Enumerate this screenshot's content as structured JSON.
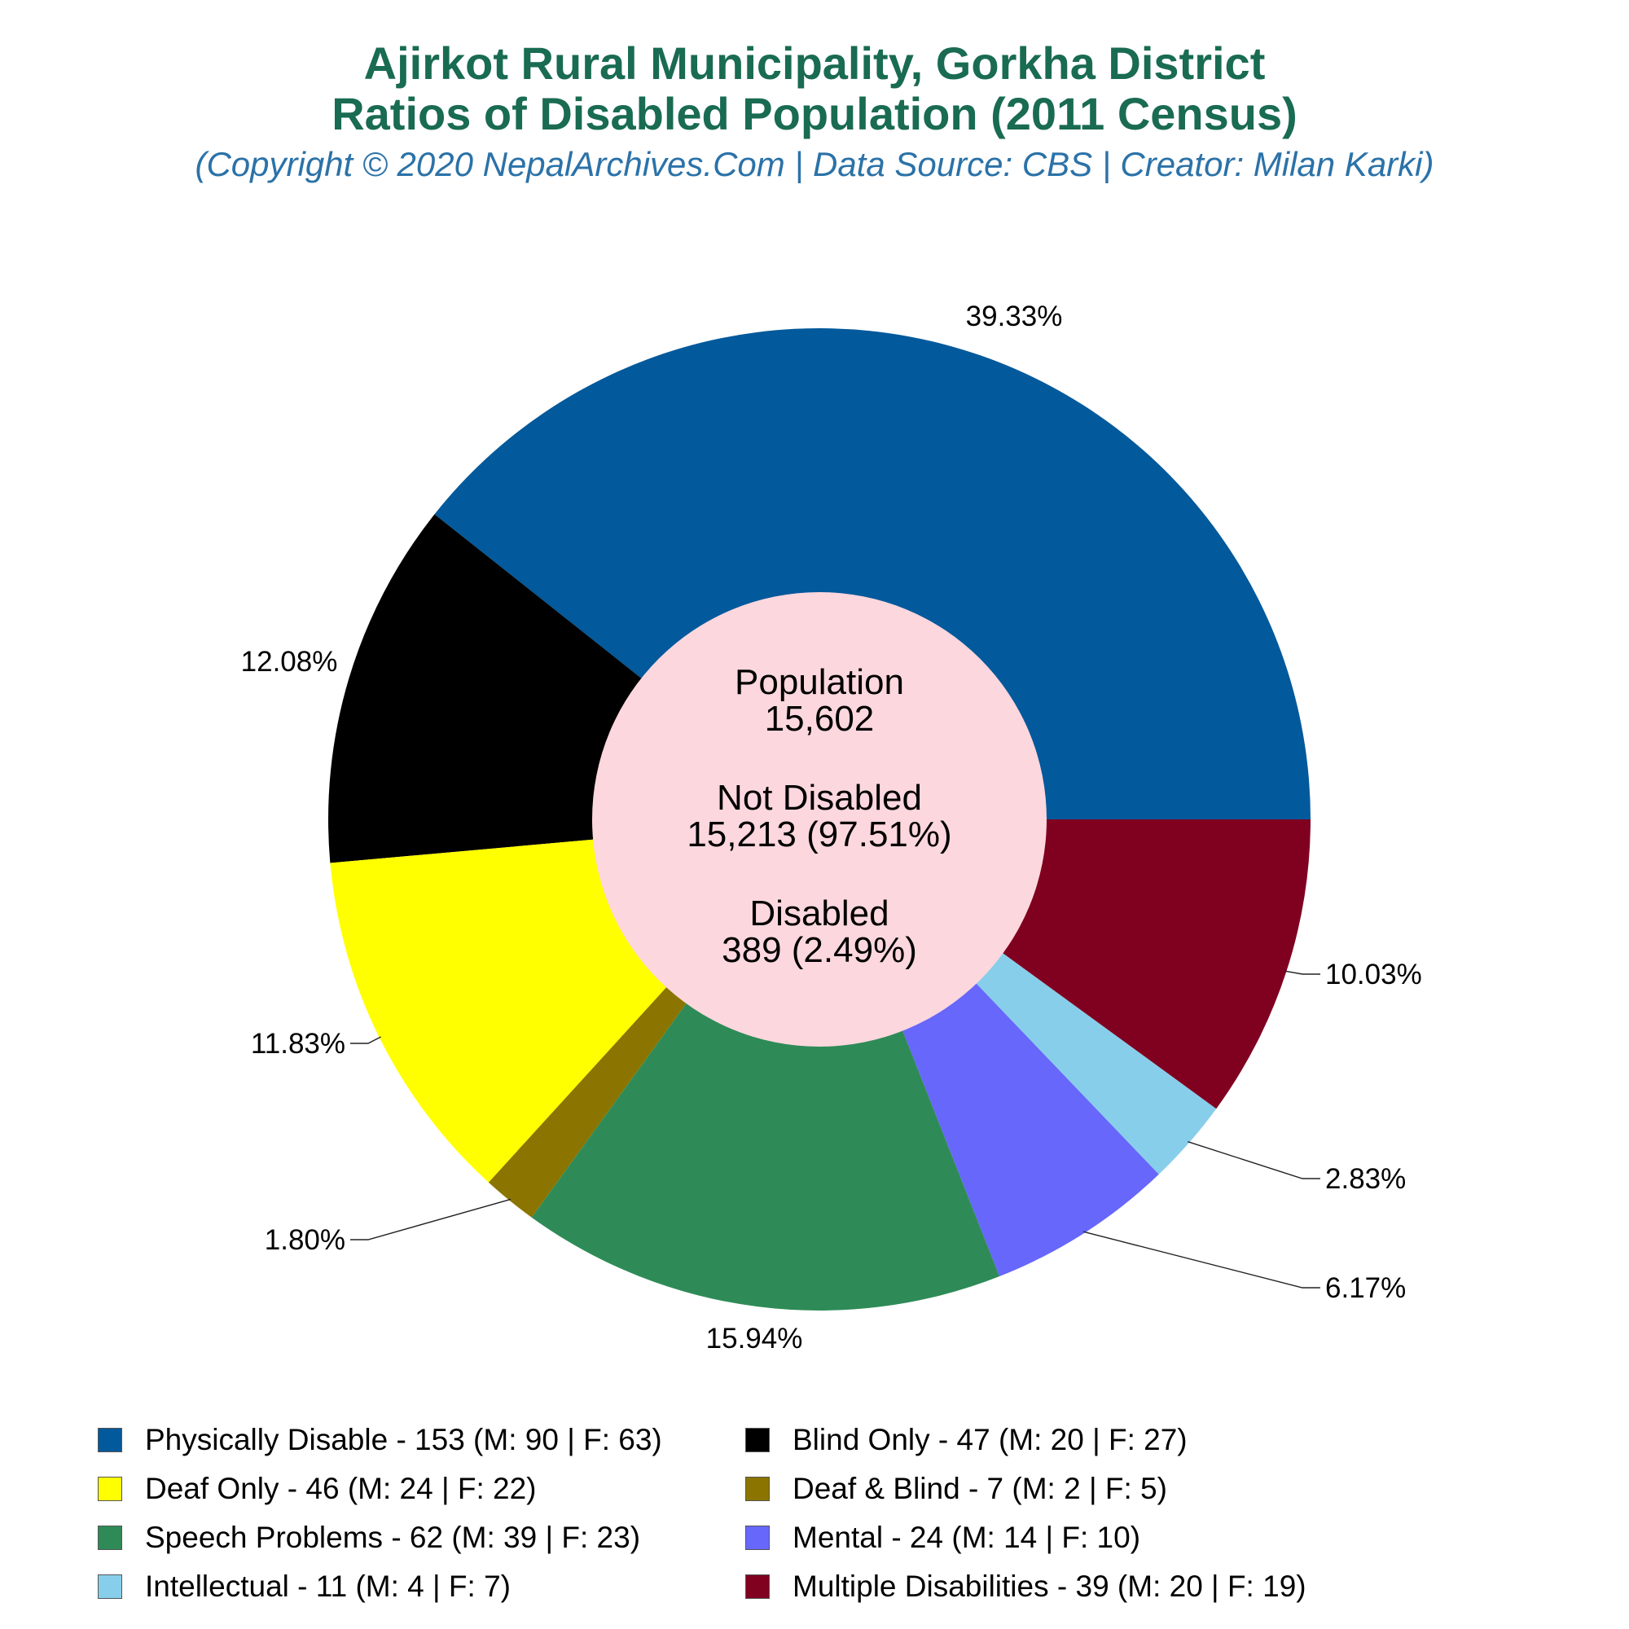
{
  "title": {
    "line1": "Ajirkot Rural Municipality, Gorkha District",
    "line2": "Ratios of Disabled Population (2011 Census)"
  },
  "subtitle": "(Copyright © 2020 NepalArchives.Com | Data Source: CBS | Creator: Milan Karki)",
  "center": {
    "population_label": "Population",
    "population_value": "15,602",
    "not_disabled_label": "Not Disabled",
    "not_disabled_value": "15,213 (97.51%)",
    "disabled_label": "Disabled",
    "disabled_value": "389 (2.49%)"
  },
  "legend": [
    {
      "label": "Physically Disable - 153 (M: 90 | F: 63)",
      "color": "#02599b"
    },
    {
      "label": "Blind Only - 47 (M: 20 | F: 27)",
      "color": "#000000"
    },
    {
      "label": "Deaf Only - 46 (M: 24 | F: 22)",
      "color": "#ffff00"
    },
    {
      "label": "Deaf & Blind - 7 (M: 2 | F: 5)",
      "color": "#8b7500"
    },
    {
      "label": "Speech Problems - 62 (M: 39 | F: 23)",
      "color": "#2e8b57"
    },
    {
      "label": "Mental - 24 (M: 14 | F: 10)",
      "color": "#6767fb"
    },
    {
      "label": "Intellectual - 11 (M: 4 | F: 7)",
      "color": "#87ceeb"
    },
    {
      "label": "Multiple Disabilities - 39 (M: 20 | F: 19)",
      "color": "#800020"
    }
  ],
  "chart_data": {
    "type": "pie",
    "donut": true,
    "start": "3 o'clock",
    "direction": "counterclockwise",
    "center_fill": "#fdd7de",
    "slices": [
      {
        "name": "Physically Disable",
        "value": 153,
        "percent_label": "39.33%",
        "color": "#02599b"
      },
      {
        "name": "Blind Only",
        "value": 47,
        "percent_label": "12.08%",
        "color": "#000000"
      },
      {
        "name": "Deaf Only",
        "value": 46,
        "percent_label": "11.83%",
        "color": "#ffff00"
      },
      {
        "name": "Deaf & Blind",
        "value": 7,
        "percent_label": "1.80%",
        "color": "#8b7500"
      },
      {
        "name": "Speech Problems",
        "value": 62,
        "percent_label": "15.94%",
        "color": "#2e8b57"
      },
      {
        "name": "Mental",
        "value": 24,
        "percent_label": "6.17%",
        "color": "#6767fb"
      },
      {
        "name": "Intellectual",
        "value": 11,
        "percent_label": "2.83%",
        "color": "#87ceeb"
      },
      {
        "name": "Multiple Disabilities",
        "value": 39,
        "percent_label": "10.03%",
        "color": "#800020"
      }
    ]
  }
}
